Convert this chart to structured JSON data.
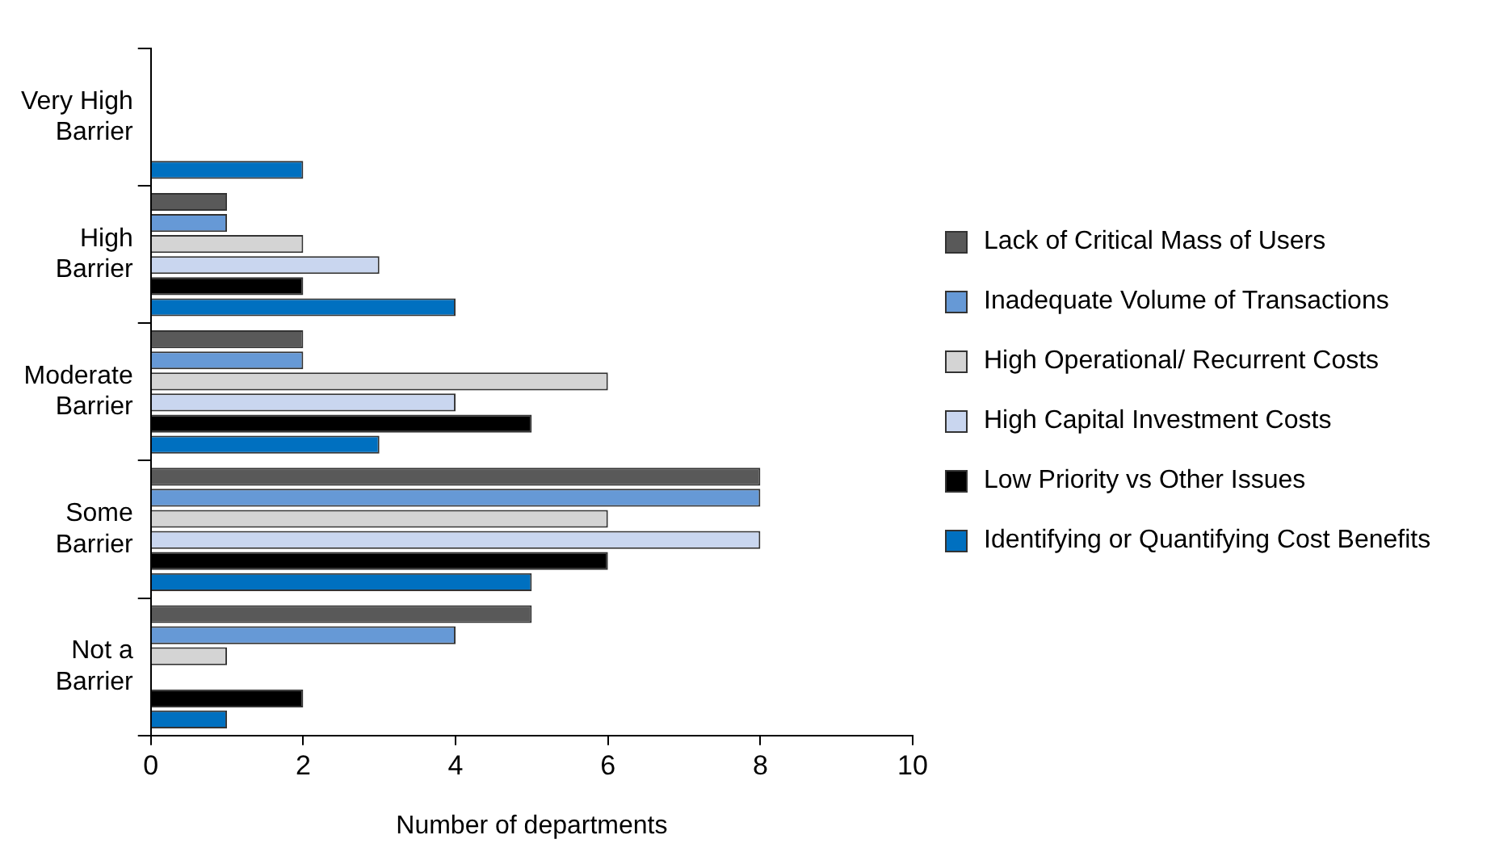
{
  "chart_data": {
    "type": "bar",
    "orientation": "horizontal",
    "xlabel": "Number of departments",
    "categories": [
      "Very High Barrier",
      "High Barrier",
      "Moderate Barrier",
      "Some Barrier",
      "Not a Barrier"
    ],
    "series": [
      {
        "name": "Lack of Critical Mass of Users",
        "color": "#595959",
        "values": [
          0,
          1,
          2,
          8,
          5
        ]
      },
      {
        "name": "Inadequate Volume of Transactions",
        "color": "#6699d6",
        "values": [
          0,
          1,
          2,
          8,
          4
        ]
      },
      {
        "name": "High Operational/ Recurrent Costs",
        "color": "#d4d4d4",
        "values": [
          0,
          2,
          6,
          6,
          1
        ]
      },
      {
        "name": "High Capital Investment Costs",
        "color": "#c9d6ef",
        "values": [
          0,
          3,
          4,
          8,
          0
        ]
      },
      {
        "name": "Low Priority vs Other Issues",
        "color": "#000000",
        "values": [
          0,
          2,
          5,
          6,
          2
        ]
      },
      {
        "name": "Identifying or Quantifying Cost Benefits",
        "color": "#0070c0",
        "values": [
          2,
          4,
          3,
          5,
          1
        ]
      }
    ],
    "xlim": [
      0,
      10
    ],
    "xticks": [
      0,
      2,
      4,
      6,
      8,
      10
    ],
    "grid": false,
    "legend": "right"
  }
}
